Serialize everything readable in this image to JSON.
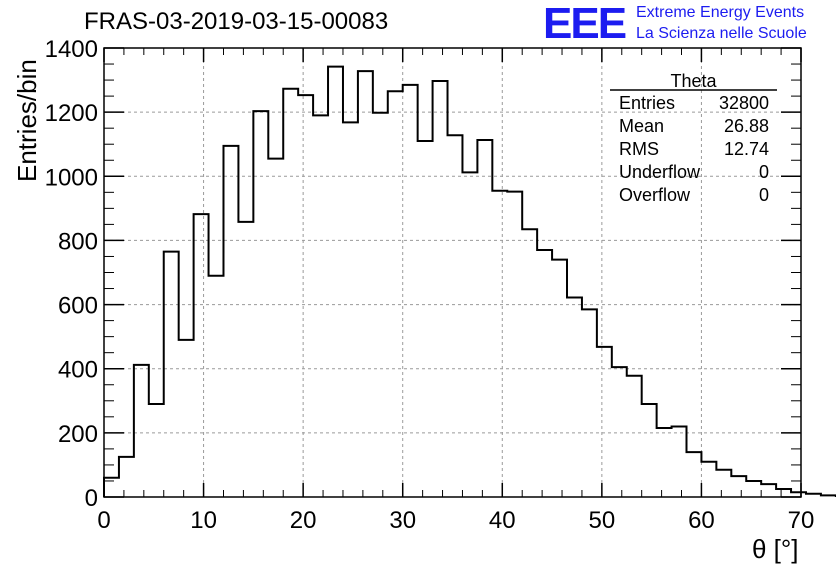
{
  "page_title": "FRAS-03-2019-03-15-00083",
  "logo": {
    "mark": "EEE",
    "line1": "Extreme Energy Events",
    "line2": "La Scienza nelle Scuole",
    "color": "#1c1cf0"
  },
  "stats_box": {
    "title": "Theta",
    "rows": [
      {
        "key": "Entries",
        "value": "32800"
      },
      {
        "key": "Mean",
        "value": "26.88"
      },
      {
        "key": "RMS",
        "value": "12.74"
      },
      {
        "key": "Underflow",
        "value": "0"
      },
      {
        "key": "Overflow",
        "value": "0"
      }
    ]
  },
  "chart_data": {
    "type": "bar",
    "style": "step-histogram",
    "xlabel": "θ [°]",
    "ylabel": "Entries/bin",
    "xlim": [
      0,
      70
    ],
    "ylim": [
      0,
      1400
    ],
    "x_ticks": [
      "0",
      "10",
      "20",
      "30",
      "40",
      "50",
      "60",
      "70"
    ],
    "y_ticks": [
      "0",
      "200",
      "400",
      "600",
      "800",
      "1000",
      "1200",
      "1400"
    ],
    "grid": true,
    "bin_width": 1.5,
    "bin_start": 0,
    "values": [
      60,
      125,
      412,
      290,
      765,
      490,
      882,
      690,
      1095,
      858,
      1203,
      1055,
      1273,
      1253,
      1190,
      1342,
      1168,
      1328,
      1198,
      1265,
      1285,
      1110,
      1297,
      1128,
      1012,
      1113,
      955,
      952,
      835,
      770,
      740,
      622,
      585,
      468,
      405,
      378,
      290,
      215,
      220,
      140,
      110,
      85,
      65,
      50,
      40,
      25,
      15,
      10,
      5,
      3
    ],
    "line_color": "#000000"
  }
}
